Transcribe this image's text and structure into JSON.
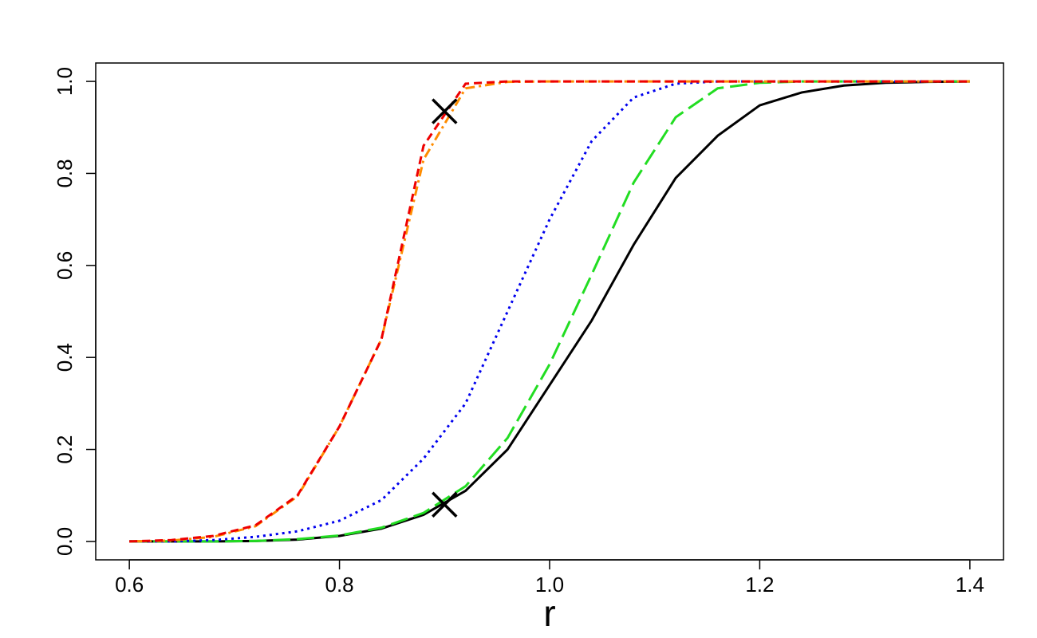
{
  "chart_data": {
    "type": "line",
    "x_label": "r",
    "x": [
      0.6,
      0.64,
      0.68,
      0.72,
      0.76,
      0.8,
      0.84,
      0.88,
      0.92,
      0.96,
      1.0,
      1.04,
      1.08,
      1.12,
      1.16,
      1.2,
      1.24,
      1.28,
      1.32,
      1.36,
      1.4
    ],
    "series": [
      {
        "color": "#000000",
        "dash": "solid",
        "values": [
          0,
          0,
          0,
          0.001,
          0.004,
          0.012,
          0.028,
          0.058,
          0.11,
          0.2,
          0.34,
          0.48,
          0.645,
          0.79,
          0.882,
          0.948,
          0.976,
          0.991,
          0.997,
          0.999,
          1.0
        ]
      },
      {
        "color": "#22dd22",
        "dash": "longdash",
        "values": [
          0,
          0,
          0,
          0.001,
          0.005,
          0.013,
          0.03,
          0.062,
          0.12,
          0.225,
          0.385,
          0.58,
          0.78,
          0.922,
          0.985,
          0.997,
          1.0,
          1.0,
          1.0,
          1.0,
          1.0
        ]
      },
      {
        "color": "#0000ee",
        "dash": "dotted",
        "values": [
          0,
          0,
          0.003,
          0.01,
          0.022,
          0.045,
          0.09,
          0.18,
          0.3,
          0.5,
          0.7,
          0.87,
          0.965,
          0.995,
          1.0,
          1.0,
          1.0,
          1.0,
          1.0,
          1.0,
          1.0
        ]
      },
      {
        "color": "#ff8c00",
        "dash": "dotdash",
        "values": [
          0,
          0.002,
          0.01,
          0.033,
          0.098,
          0.25,
          0.44,
          0.83,
          0.985,
          0.999,
          1.0,
          1.0,
          1.0,
          1.0,
          1.0,
          1.0,
          1.0,
          1.0,
          1.0,
          1.0,
          1.0
        ]
      },
      {
        "color": "#ee0000",
        "dash": "dashed",
        "values": [
          0,
          0.003,
          0.012,
          0.035,
          0.1,
          0.25,
          0.44,
          0.86,
          0.995,
          1.0,
          1.0,
          1.0,
          1.0,
          1.0,
          1.0,
          1.0,
          1.0,
          1.0,
          1.0,
          1.0,
          1.0
        ]
      }
    ],
    "markers": {
      "x": [
        0.9,
        0.9
      ],
      "y": [
        0.935,
        0.08
      ],
      "color": "#000000"
    },
    "xlim": [
      0.568,
      1.432
    ],
    "ylim": [
      -0.04,
      1.04
    ],
    "xticks": [
      {
        "value": 0.6,
        "label": "0.6"
      },
      {
        "value": 0.8,
        "label": "0.8"
      },
      {
        "value": 1.0,
        "label": "1.0"
      },
      {
        "value": 1.2,
        "label": "1.2"
      },
      {
        "value": 1.4,
        "label": "1.4"
      }
    ],
    "yticks": [
      {
        "value": 0.0,
        "label": "0.0"
      },
      {
        "value": 0.2,
        "label": "0.2"
      },
      {
        "value": 0.4,
        "label": "0.4"
      },
      {
        "value": 0.6,
        "label": "0.6"
      },
      {
        "value": 0.8,
        "label": "0.8"
      },
      {
        "value": 1.0,
        "label": "1.0"
      }
    ]
  }
}
